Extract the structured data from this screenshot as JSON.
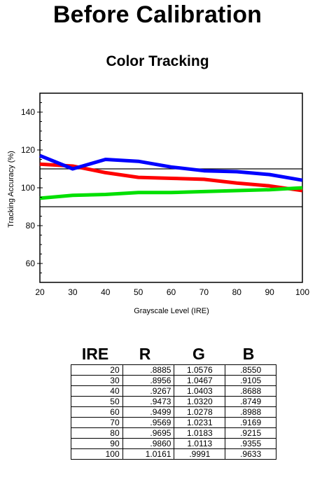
{
  "page": {
    "title": "Before Calibration"
  },
  "chart_data": {
    "type": "line",
    "title": "Color Tracking",
    "xlabel": "Grayscale Level (IRE)",
    "ylabel": "Tracking Accuracy (%)",
    "x": [
      20,
      30,
      40,
      50,
      60,
      70,
      80,
      90,
      100
    ],
    "xlim": [
      20,
      100
    ],
    "ylim": [
      50,
      150
    ],
    "xticks": [
      20,
      30,
      40,
      50,
      60,
      70,
      80,
      90,
      100
    ],
    "yticks": [
      60,
      80,
      100,
      120,
      140
    ],
    "reference_lines": [
      90,
      110
    ],
    "grid": false,
    "legend": "none",
    "series": [
      {
        "color": "#ff0000",
        "values": [
          112.5,
          111.5,
          108,
          105.5,
          105,
          104.5,
          102.5,
          101,
          98.5
        ]
      },
      {
        "color": "#00e000",
        "values": [
          94.5,
          96,
          96.5,
          97.5,
          97.5,
          98,
          98.5,
          99,
          100
        ]
      },
      {
        "color": "#0000ff",
        "values": [
          117,
          110,
          115,
          114,
          111,
          109,
          108.5,
          107,
          104
        ]
      }
    ]
  },
  "table": {
    "headers": [
      "IRE",
      "R",
      "G",
      "B"
    ],
    "rows": [
      [
        "20",
        ".8885",
        "1.0576",
        ".8550"
      ],
      [
        "30",
        ".8956",
        "1.0467",
        ".9105"
      ],
      [
        "40",
        ".9267",
        "1.0403",
        ".8688"
      ],
      [
        "50",
        ".9473",
        "1.0320",
        ".8749"
      ],
      [
        "60",
        ".9499",
        "1.0278",
        ".8988"
      ],
      [
        "70",
        ".9569",
        "1.0231",
        ".9169"
      ],
      [
        "80",
        ".9695",
        "1.0183",
        ".9215"
      ],
      [
        "90",
        ".9860",
        "1.0113",
        ".9355"
      ],
      [
        "100",
        "1.0161",
        ".9991",
        ".9633"
      ]
    ]
  }
}
